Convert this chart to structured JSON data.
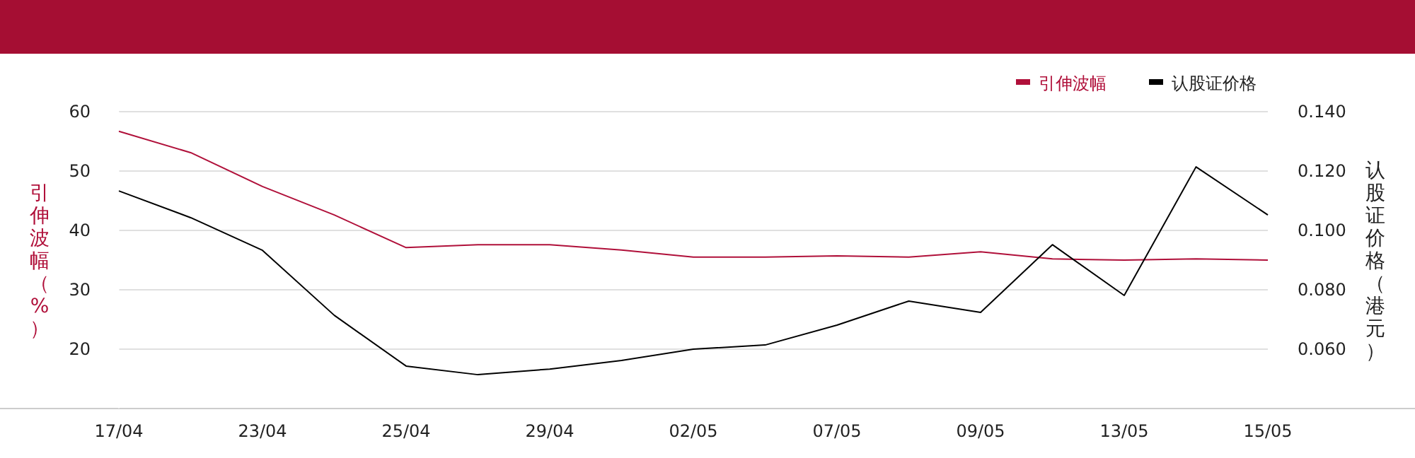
{
  "chart_data": {
    "type": "line",
    "categories": [
      "17/04",
      null,
      "23/04",
      null,
      "25/04",
      null,
      "29/04",
      null,
      "02/05",
      null,
      "07/05",
      null,
      "09/05",
      null,
      "13/05",
      null,
      "15/05"
    ],
    "ylabel": "引伸波幅（%）",
    "y2label": "认股证价格（港元）",
    "ylim": [
      10,
      60
    ],
    "yticks": [
      20,
      30,
      40,
      50,
      60
    ],
    "y2lim": [
      0.04,
      0.14
    ],
    "y2ticks": [
      {
        "value": 0.06,
        "label": "0.060"
      },
      {
        "value": 0.08,
        "label": "0.080"
      },
      {
        "value": 0.1,
        "label": "0.100"
      },
      {
        "value": 0.12,
        "label": "0.120"
      },
      {
        "value": 0.14,
        "label": "0.140"
      }
    ],
    "grid": "y",
    "legend": "top right",
    "marker": "none",
    "line_style": "solid",
    "series": [
      {
        "name": "引伸波幅",
        "color": "#b0103a",
        "values": [
          56.7,
          53.1,
          47.4,
          42.6,
          37.1,
          37.6,
          37.6,
          36.7,
          35.5,
          35.5,
          35.7,
          35.5,
          36.4,
          35.2,
          35.0,
          35.2,
          35.0
        ]
      },
      {
        "name": "认股证价格",
        "color": "#000000",
        "axis": "y2",
        "values": [
          0.1133,
          0.1043,
          0.0933,
          0.0714,
          0.0543,
          0.0514,
          0.0533,
          0.0562,
          0.06,
          0.0614,
          0.0681,
          0.0762,
          0.0724,
          0.0952,
          0.0781,
          0.1214,
          0.1052
        ]
      }
    ]
  }
}
